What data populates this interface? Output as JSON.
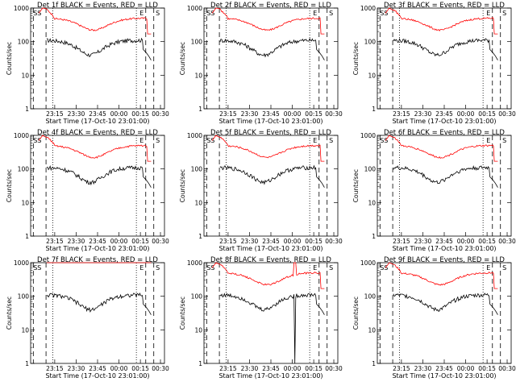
{
  "chart_data": [
    {
      "type": "line",
      "title": "Det 1f BLACK = Events, RED = LLD",
      "xlabel": "Start Time (17-Oct-10 23:01:00)",
      "ylabel": "Counts/sec",
      "ylim": [
        1,
        1000
      ],
      "yscale": "log",
      "x_ticks": [
        "23:15",
        "23:30",
        "23:45",
        "00:00",
        "00:15",
        "00:30"
      ],
      "y_ticks": [
        "1",
        "10",
        "100",
        "1000"
      ],
      "markers": [
        "SS",
        "E",
        "S"
      ],
      "series": [
        {
          "name": "Events",
          "color": "#000000",
          "profile": "normal",
          "level": "events"
        },
        {
          "name": "LLD",
          "color": "#ff0000",
          "profile": "normal",
          "level": "lld"
        }
      ]
    },
    {
      "type": "line",
      "title": "Det 2f BLACK = Events, RED = LLD",
      "xlabel": "Start Time (17-Oct-10 23:01:00)",
      "ylabel": "Counts/sec",
      "ylim": [
        1,
        1000
      ],
      "yscale": "log",
      "x_ticks": [
        "23:15",
        "23:30",
        "23:45",
        "00:00",
        "00:15",
        "00:30"
      ],
      "y_ticks": [
        "1",
        "10",
        "100",
        "1000"
      ],
      "markers": [
        "SS",
        "E",
        "S"
      ],
      "series": [
        {
          "name": "Events",
          "color": "#000000",
          "profile": "normal",
          "level": "events"
        },
        {
          "name": "LLD",
          "color": "#ff0000",
          "profile": "normal",
          "level": "lld"
        }
      ]
    },
    {
      "type": "line",
      "title": "Det 3f BLACK = Events, RED = LLD",
      "xlabel": "Start Time (17-Oct-10 23:01:00)",
      "ylabel": "Counts/sec",
      "ylim": [
        1,
        1000
      ],
      "yscale": "log",
      "x_ticks": [
        "23:15",
        "23:30",
        "23:45",
        "00:00",
        "00:15",
        "00:30"
      ],
      "y_ticks": [
        "1",
        "10",
        "100",
        "1000"
      ],
      "markers": [
        "SS",
        "E",
        "S"
      ],
      "series": [
        {
          "name": "Events",
          "color": "#000000",
          "profile": "normal",
          "level": "events"
        },
        {
          "name": "LLD",
          "color": "#ff0000",
          "profile": "normal",
          "level": "lld"
        }
      ]
    },
    {
      "type": "line",
      "title": "Det 4f BLACK = Events, RED = LLD",
      "xlabel": "Start Time (17-Oct-10 23:01:00)",
      "ylabel": "Counts/sec",
      "ylim": [
        1,
        1000
      ],
      "yscale": "log",
      "x_ticks": [
        "23:15",
        "23:30",
        "23:45",
        "00:00",
        "00:15",
        "00:30"
      ],
      "y_ticks": [
        "1",
        "10",
        "100",
        "1000"
      ],
      "markers": [
        "SS",
        "E",
        "S"
      ],
      "series": [
        {
          "name": "Events",
          "color": "#000000",
          "profile": "normal",
          "level": "events"
        },
        {
          "name": "LLD",
          "color": "#ff0000",
          "profile": "normal",
          "level": "lld"
        }
      ]
    },
    {
      "type": "line",
      "title": "Det 5f BLACK = Events, RED = LLD",
      "xlabel": "Start Time (17-Oct-10 23:01:00)",
      "ylabel": "Counts/sec",
      "ylim": [
        1,
        1000
      ],
      "yscale": "log",
      "x_ticks": [
        "23:15",
        "23:30",
        "23:45",
        "00:00",
        "00:15",
        "00:30"
      ],
      "y_ticks": [
        "1",
        "10",
        "100",
        "1000"
      ],
      "markers": [
        "SS",
        "E",
        "S"
      ],
      "series": [
        {
          "name": "Events",
          "color": "#000000",
          "profile": "normal",
          "level": "events"
        },
        {
          "name": "LLD",
          "color": "#ff0000",
          "profile": "normal",
          "level": "lld"
        }
      ]
    },
    {
      "type": "line",
      "title": "Det 6f BLACK = Events, RED = LLD",
      "xlabel": "Start Time (17-Oct-10 23:01:00)",
      "ylabel": "Counts/sec",
      "ylim": [
        1,
        1000
      ],
      "yscale": "log",
      "x_ticks": [
        "23:15",
        "23:30",
        "23:45",
        "00:00",
        "00:15",
        "00:30"
      ],
      "y_ticks": [
        "1",
        "10",
        "100",
        "1000"
      ],
      "markers": [
        "SS",
        "E",
        "S"
      ],
      "series": [
        {
          "name": "Events",
          "color": "#000000",
          "profile": "normal",
          "level": "events"
        },
        {
          "name": "LLD",
          "color": "#ff0000",
          "profile": "normal",
          "level": "lld"
        }
      ]
    },
    {
      "type": "line",
      "title": "Det 7f BLACK = Events, RED = LLD",
      "xlabel": "Start Time (17-Oct-10 23:01:00)",
      "ylabel": "Counts/sec",
      "ylim": [
        1,
        1000
      ],
      "yscale": "log",
      "x_ticks": [
        "23:15",
        "23:30",
        "23:45",
        "00:00",
        "00:15",
        "00:30"
      ],
      "y_ticks": [
        "1",
        "10",
        "100",
        "1000"
      ],
      "markers": [
        "SS",
        "E",
        "S"
      ],
      "series": [
        {
          "name": "Events",
          "color": "#000000",
          "profile": "normal",
          "level": "events"
        },
        {
          "name": "LLD",
          "color": "#ff0000",
          "profile": "saturated",
          "level": "lld"
        }
      ]
    },
    {
      "type": "line",
      "title": "Det 8f BLACK = Events, RED = LLD",
      "xlabel": "Start Time (17-Oct-10 23:01:00)",
      "ylabel": "Counts/sec",
      "ylim": [
        1,
        1000
      ],
      "yscale": "log",
      "x_ticks": [
        "23:15",
        "23:30",
        "23:45",
        "00:00",
        "00:15",
        "00:30"
      ],
      "y_ticks": [
        "1",
        "10",
        "100",
        "1000"
      ],
      "markers": [
        "SS",
        "E",
        "S"
      ],
      "series": [
        {
          "name": "Events",
          "color": "#000000",
          "profile": "dropout",
          "level": "events"
        },
        {
          "name": "LLD",
          "color": "#ff0000",
          "profile": "spike",
          "level": "lld"
        }
      ]
    },
    {
      "type": "line",
      "title": "Det 9f BLACK = Events, RED = LLD",
      "xlabel": "Start Time (17-Oct-10 23:01:00)",
      "ylabel": "Counts/sec",
      "ylim": [
        1,
        1000
      ],
      "yscale": "log",
      "x_ticks": [
        "23:15",
        "23:30",
        "23:45",
        "00:00",
        "00:15",
        "00:30"
      ],
      "y_ticks": [
        "1",
        "10",
        "100",
        "1000"
      ],
      "markers": [
        "SS",
        "E",
        "S"
      ],
      "series": [
        {
          "name": "Events",
          "color": "#000000",
          "profile": "normal",
          "level": "events"
        },
        {
          "name": "LLD",
          "color": "#ff0000",
          "profile": "normal",
          "level": "lld"
        }
      ]
    }
  ]
}
